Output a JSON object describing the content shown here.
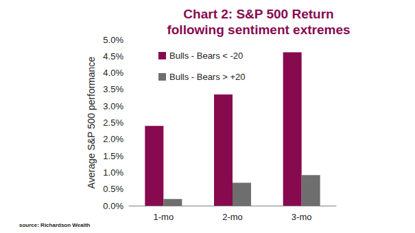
{
  "chart_data": {
    "type": "bar",
    "title": "Chart 2: S&P 500 Return\nfollowing sentiment extremes",
    "ylabel": "Average S&P 500 performance",
    "source": "source: Richardson Wealth",
    "categories": [
      "1-mo",
      "2-mo",
      "3-mo"
    ],
    "series": [
      {
        "name": "Bulls - Bears < -20",
        "color": "#870a4f",
        "values": [
          2.4,
          3.35,
          4.62
        ]
      },
      {
        "name": "Bulls - Bears > +20",
        "color": "#6e6e6e",
        "values": [
          0.2,
          0.69,
          0.92
        ]
      }
    ],
    "ylim": [
      0,
      5
    ],
    "yticks": [
      {
        "value": 0,
        "label": "0.0%"
      },
      {
        "value": 0.5,
        "label": "0.5%"
      },
      {
        "value": 1,
        "label": "1.0%"
      },
      {
        "value": 1.5,
        "label": "1.5%"
      },
      {
        "value": 2,
        "label": "2.0%"
      },
      {
        "value": 2.5,
        "label": "2.5%"
      },
      {
        "value": 3,
        "label": "3.0%"
      },
      {
        "value": 3.5,
        "label": "3.5%"
      },
      {
        "value": 4,
        "label": "4.0%"
      },
      {
        "value": 4.5,
        "label": "4.5%"
      },
      {
        "value": 5,
        "label": "5.0%"
      }
    ],
    "grid": false,
    "legend": "upper left"
  }
}
